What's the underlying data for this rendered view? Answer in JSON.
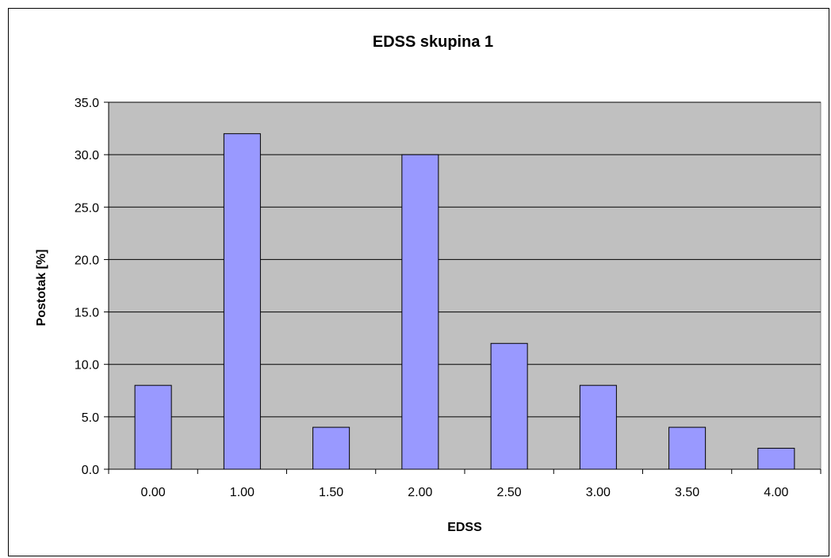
{
  "chart_data": {
    "type": "bar",
    "title": "EDSS skupina 1",
    "xlabel": "EDSS",
    "ylabel": "Postotak [%]",
    "categories": [
      "0.00",
      "1.00",
      "1.50",
      "2.00",
      "2.50",
      "3.00",
      "3.50",
      "4.00"
    ],
    "values": [
      8,
      32,
      4,
      30,
      12,
      8,
      4,
      2
    ],
    "ylim": [
      0,
      35
    ],
    "yticks": [
      "0.0",
      "5.0",
      "10.0",
      "15.0",
      "20.0",
      "25.0",
      "30.0",
      "35.0"
    ],
    "grid": true,
    "legend": "none",
    "colors": {
      "bar_fill": "#9999ff",
      "bar_stroke": "#000000",
      "plot_background": "#c0c0c0",
      "gridline": "#000000"
    }
  }
}
